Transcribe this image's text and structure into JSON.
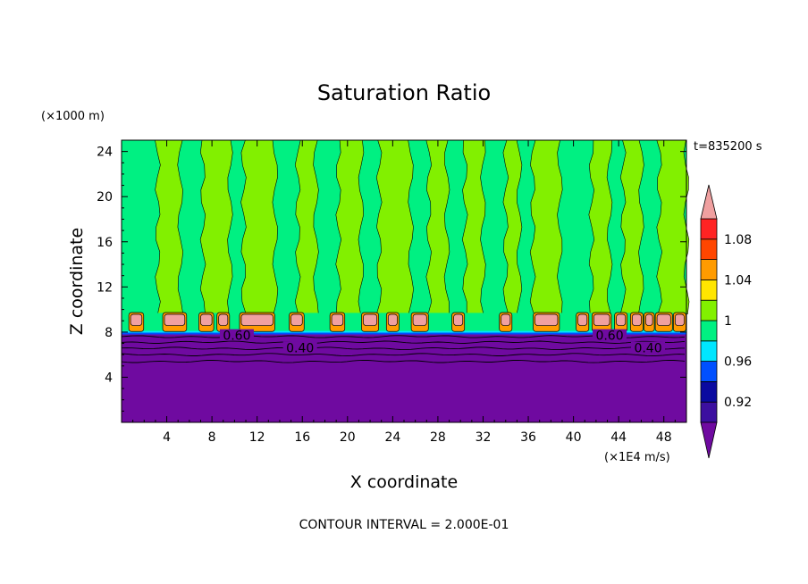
{
  "chart_data": {
    "type": "heatmap",
    "title": "Saturation Ratio",
    "xlabel": "X coordinate",
    "ylabel": "Z coordinate",
    "x_unit": "(×1E4 m/s)",
    "y_unit": "(×1000 m)",
    "time_label": "t=835200 s",
    "footer": "CONTOUR INTERVAL = 2.000E-01",
    "xlim": [
      0,
      50
    ],
    "ylim": [
      0,
      25
    ],
    "x_ticks": [
      "4",
      "8",
      "12",
      "16",
      "20",
      "24",
      "28",
      "32",
      "36",
      "40",
      "44",
      "48"
    ],
    "x_tick_values": [
      4,
      8,
      12,
      16,
      20,
      24,
      28,
      32,
      36,
      40,
      44,
      48
    ],
    "y_ticks": [
      "4",
      "8",
      "12",
      "16",
      "20",
      "24"
    ],
    "y_tick_values": [
      4,
      8,
      12,
      16,
      20,
      24
    ],
    "colorbar": {
      "bounds": [
        0.9,
        0.92,
        0.94,
        0.96,
        0.98,
        1.0,
        1.02,
        1.04,
        1.06,
        1.08,
        1.1
      ],
      "labels": [
        "0.92",
        "0.96",
        "1",
        "1.04",
        "1.08"
      ],
      "label_values": [
        0.92,
        0.96,
        1.0,
        1.04,
        1.08
      ],
      "colors": [
        "#3c0fa0",
        "#0a0aa0",
        "#0050ff",
        "#00e6ff",
        "#00f082",
        "#82f000",
        "#ffe600",
        "#ff9b00",
        "#ff4600",
        "#ff2323"
      ],
      "under_color": "#6f0aa0",
      "over_color": "#f0a0a0"
    },
    "regions": {
      "boundary_layer_top": 8,
      "background_above": 0.99,
      "background_below": 0.4,
      "moist_columns": [
        [
          3.2,
          5.2
        ],
        [
          7.2,
          9.6
        ],
        [
          10.8,
          13.6
        ],
        [
          15.6,
          17.2
        ],
        [
          19.2,
          21.2
        ],
        [
          22.8,
          25.6
        ],
        [
          27.2,
          28.8
        ],
        [
          30.4,
          32.0
        ],
        [
          34.0,
          35.2
        ],
        [
          36.4,
          38.8
        ],
        [
          41.6,
          43.2
        ],
        [
          44.4,
          46.0
        ],
        [
          47.6,
          50.0
        ]
      ],
      "supersaturated_cells": [
        [
          0.8,
          1.8
        ],
        [
          3.8,
          5.6
        ],
        [
          7.0,
          8.0
        ],
        [
          8.6,
          9.4
        ],
        [
          10.6,
          13.4
        ],
        [
          15.0,
          16.0
        ],
        [
          18.6,
          19.6
        ],
        [
          21.4,
          22.6
        ],
        [
          23.6,
          24.4
        ],
        [
          25.8,
          27.0
        ],
        [
          29.4,
          30.2
        ],
        [
          33.6,
          34.4
        ],
        [
          36.6,
          38.6
        ],
        [
          40.4,
          41.2
        ],
        [
          41.8,
          43.2
        ],
        [
          43.8,
          44.6
        ],
        [
          45.2,
          46.0
        ],
        [
          46.4,
          47.0
        ],
        [
          47.4,
          48.6
        ],
        [
          49.0,
          49.8
        ]
      ],
      "contour_labels": [
        {
          "text": "0.60",
          "x": 10.2,
          "z": 7.7
        },
        {
          "text": "0.40",
          "x": 15.8,
          "z": 6.6
        },
        {
          "text": "0.60",
          "x": 43.2,
          "z": 7.7
        },
        {
          "text": "0.40",
          "x": 46.6,
          "z": 6.6
        }
      ]
    }
  }
}
